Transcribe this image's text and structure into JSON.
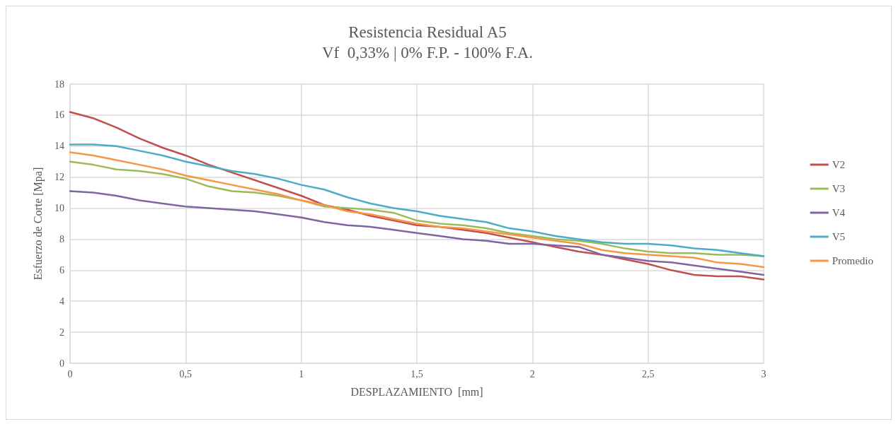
{
  "chart_data": {
    "type": "line",
    "title": "Resistencia Residual A5",
    "subtitle": "Vf  0,33% | 0% F.P. - 100% F.A.",
    "xlabel": "DESPLAZAMIENTO  [mm]",
    "ylabel": "Esfuerzo de Corte [Mpa]",
    "x": [
      0,
      0.1,
      0.2,
      0.3,
      0.4,
      0.5,
      0.6,
      0.7,
      0.8,
      0.9,
      1,
      1.1,
      1.2,
      1.3,
      1.4,
      1.5,
      1.6,
      1.7,
      1.8,
      1.9,
      2,
      2.1,
      2.2,
      2.3,
      2.4,
      2.5,
      2.6,
      2.7,
      2.8,
      2.9,
      3
    ],
    "series": [
      {
        "name": "V2",
        "color": "#c0504d",
        "values": [
          16.2,
          15.8,
          15.2,
          14.5,
          13.9,
          13.4,
          12.8,
          12.3,
          11.8,
          11.3,
          10.8,
          10.2,
          9.9,
          9.5,
          9.2,
          8.9,
          8.8,
          8.6,
          8.4,
          8.1,
          7.8,
          7.5,
          7.2,
          7.0,
          6.7,
          6.4,
          6.0,
          5.7,
          5.6,
          5.6,
          5.4
        ]
      },
      {
        "name": "V3",
        "color": "#9bbb59",
        "values": [
          13.0,
          12.8,
          12.5,
          12.4,
          12.2,
          11.9,
          11.4,
          11.1,
          11.0,
          10.8,
          10.5,
          10.1,
          10.0,
          9.9,
          9.7,
          9.2,
          9.0,
          8.9,
          8.7,
          8.4,
          8.2,
          8.0,
          7.9,
          7.7,
          7.4,
          7.2,
          7.1,
          7.1,
          7.0,
          7.0,
          6.9
        ]
      },
      {
        "name": "V4",
        "color": "#8064a2",
        "values": [
          11.1,
          11.0,
          10.8,
          10.5,
          10.3,
          10.1,
          10.0,
          9.9,
          9.8,
          9.6,
          9.4,
          9.1,
          8.9,
          8.8,
          8.6,
          8.4,
          8.2,
          8.0,
          7.9,
          7.7,
          7.7,
          7.6,
          7.5,
          7.0,
          6.8,
          6.6,
          6.5,
          6.3,
          6.1,
          5.9,
          5.7
        ]
      },
      {
        "name": "V5",
        "color": "#4bacc6",
        "values": [
          14.1,
          14.1,
          14.0,
          13.7,
          13.4,
          13.0,
          12.7,
          12.4,
          12.2,
          11.9,
          11.5,
          11.2,
          10.7,
          10.3,
          10.0,
          9.8,
          9.5,
          9.3,
          9.1,
          8.7,
          8.5,
          8.2,
          8.0,
          7.8,
          7.7,
          7.7,
          7.6,
          7.4,
          7.3,
          7.1,
          6.9
        ]
      },
      {
        "name": "Promedio",
        "color": "#f79646",
        "values": [
          13.6,
          13.4,
          13.1,
          12.8,
          12.5,
          12.1,
          11.8,
          11.5,
          11.2,
          10.9,
          10.5,
          10.2,
          9.8,
          9.6,
          9.3,
          9.0,
          8.8,
          8.7,
          8.5,
          8.3,
          8.1,
          7.9,
          7.7,
          7.3,
          7.1,
          7.0,
          6.9,
          6.8,
          6.5,
          6.4,
          6.2
        ]
      }
    ],
    "xlim": [
      0,
      3
    ],
    "xticks": [
      0,
      {
        "value": 0.5,
        "label": "0,5"
      },
      1,
      {
        "value": 1.5,
        "label": "1,5"
      },
      2,
      {
        "value": 2.5,
        "label": "2,5"
      },
      3
    ],
    "ylim": [
      0,
      18
    ],
    "yticks": [
      0,
      2,
      4,
      6,
      8,
      10,
      12,
      14,
      16,
      18
    ],
    "grid": true,
    "legend": "right",
    "marker": "none",
    "line_style": "solid"
  }
}
